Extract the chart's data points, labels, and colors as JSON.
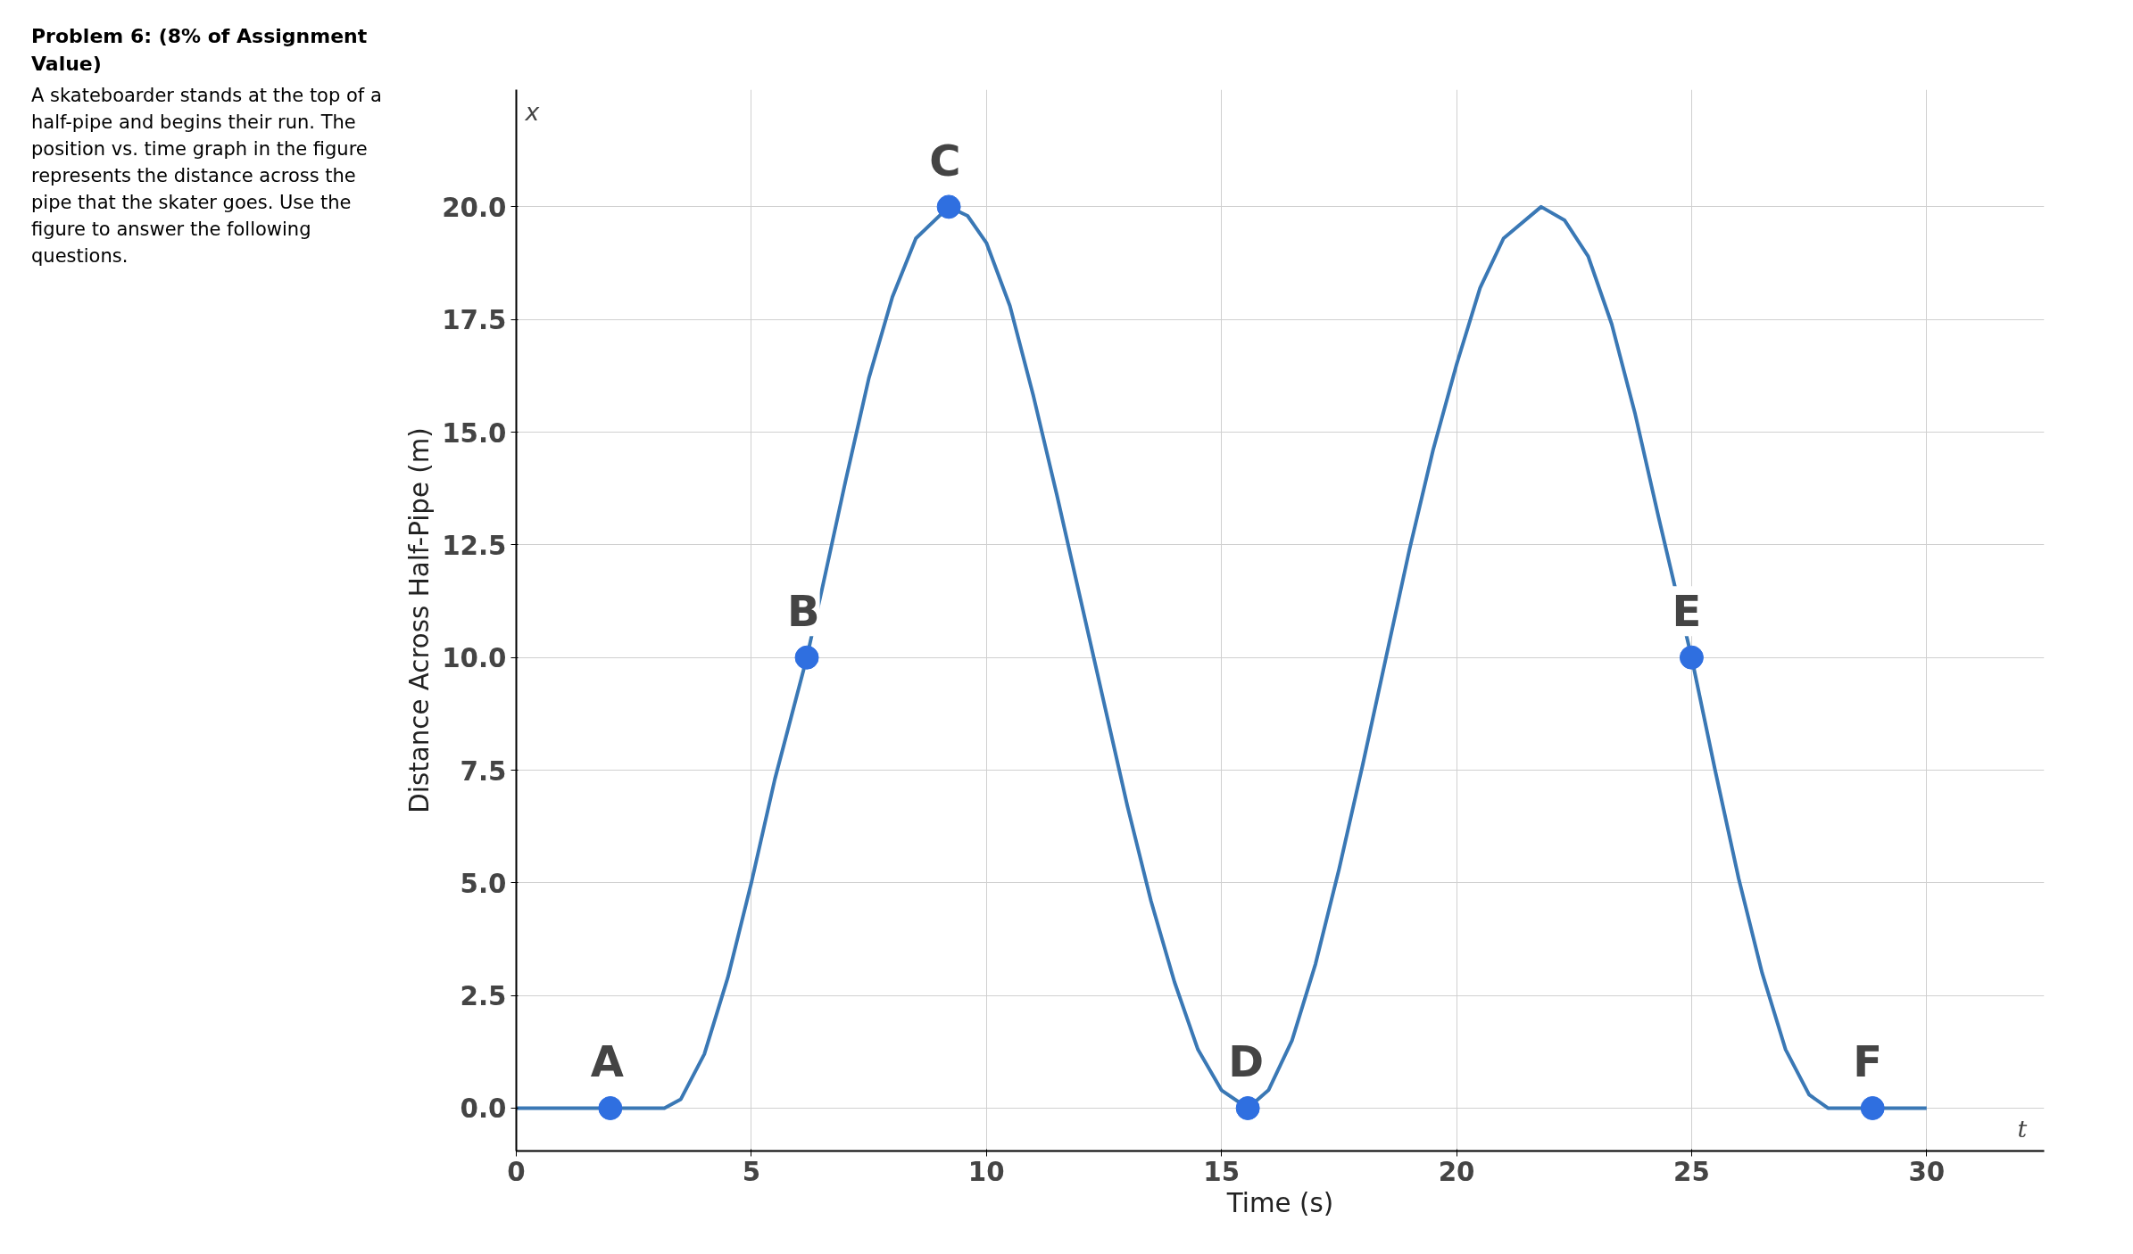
{
  "chart_data": {
    "type": "line",
    "title": "Problem 6: (8% of Assignment Value)",
    "xlabel": "Time (s)",
    "ylabel": "Distance Across Half-Pipe (m)",
    "xlim": [
      0,
      32.5
    ],
    "ylim": [
      -0.95,
      22.6
    ],
    "xticks": [
      0,
      5,
      10,
      15,
      20,
      25,
      30
    ],
    "yticks": [
      {
        "value": 0,
        "label": "0.0"
      },
      {
        "value": 2.5,
        "label": "2.5"
      },
      {
        "value": 5,
        "label": "5.0"
      },
      {
        "value": 7.5,
        "label": "7.5"
      },
      {
        "value": 10,
        "label": "10.0"
      },
      {
        "value": 12.5,
        "label": "12.5"
      },
      {
        "value": 15,
        "label": "15.0"
      },
      {
        "value": 17.5,
        "label": "17.5"
      },
      {
        "value": 20,
        "label": "20.0"
      }
    ],
    "grid": true,
    "series": [
      {
        "type": "line",
        "color": "#3a78b5",
        "x": [
          0,
          3.15,
          3.5,
          4,
          4.5,
          5,
          5.5,
          6.18,
          6.5,
          7,
          7.5,
          8,
          8.5,
          9.2,
          9.6,
          10,
          10.5,
          11,
          11.5,
          12,
          12.5,
          13,
          13.5,
          14,
          14.5,
          15,
          15.56,
          16,
          16.5,
          17,
          17.5,
          18,
          18.5,
          19,
          19.5,
          20,
          20.5,
          21,
          21.8,
          22.3,
          22.8,
          23.3,
          23.8,
          24.3,
          25,
          25.5,
          26,
          26.5,
          27,
          27.5,
          27.9,
          30
        ],
        "values": [
          0,
          0,
          0.2,
          1.2,
          2.9,
          5.0,
          7.3,
          10,
          11.5,
          13.9,
          16.2,
          18.0,
          19.3,
          20,
          19.8,
          19.2,
          17.8,
          15.8,
          13.6,
          11.3,
          9.0,
          6.7,
          4.6,
          2.8,
          1.3,
          0.4,
          0,
          0.4,
          1.5,
          3.2,
          5.3,
          7.6,
          10.0,
          12.4,
          14.6,
          16.5,
          18.2,
          19.3,
          20,
          19.7,
          18.9,
          17.4,
          15.4,
          13.1,
          10,
          7.5,
          5.1,
          3.0,
          1.3,
          0.3,
          0,
          0
        ]
      },
      {
        "type": "scatter",
        "color": "#2f6fe0",
        "marker": "circle",
        "x": [
          2,
          6.18,
          9.2,
          15.56,
          25,
          28.85
        ],
        "values": [
          0,
          10,
          20,
          0,
          10,
          0
        ]
      }
    ],
    "annotations": [
      "A skateboarder stands at the top of a half-pipe and begins their run. The position vs. time graph in the figure represents the distance across the pipe that the skater goes. Use the figure to answer the following questions.",
      {
        "text": "A",
        "x": 2,
        "y": 0
      },
      {
        "text": "B",
        "x": 6.18,
        "y": 10
      },
      {
        "text": "C",
        "x": 9.2,
        "y": 20
      },
      {
        "text": "D",
        "x": 15.56,
        "y": 0
      },
      {
        "text": "E",
        "x": 25,
        "y": 10
      },
      {
        "text": "F",
        "x": 28.85,
        "y": 0
      },
      "x",
      "t"
    ]
  }
}
